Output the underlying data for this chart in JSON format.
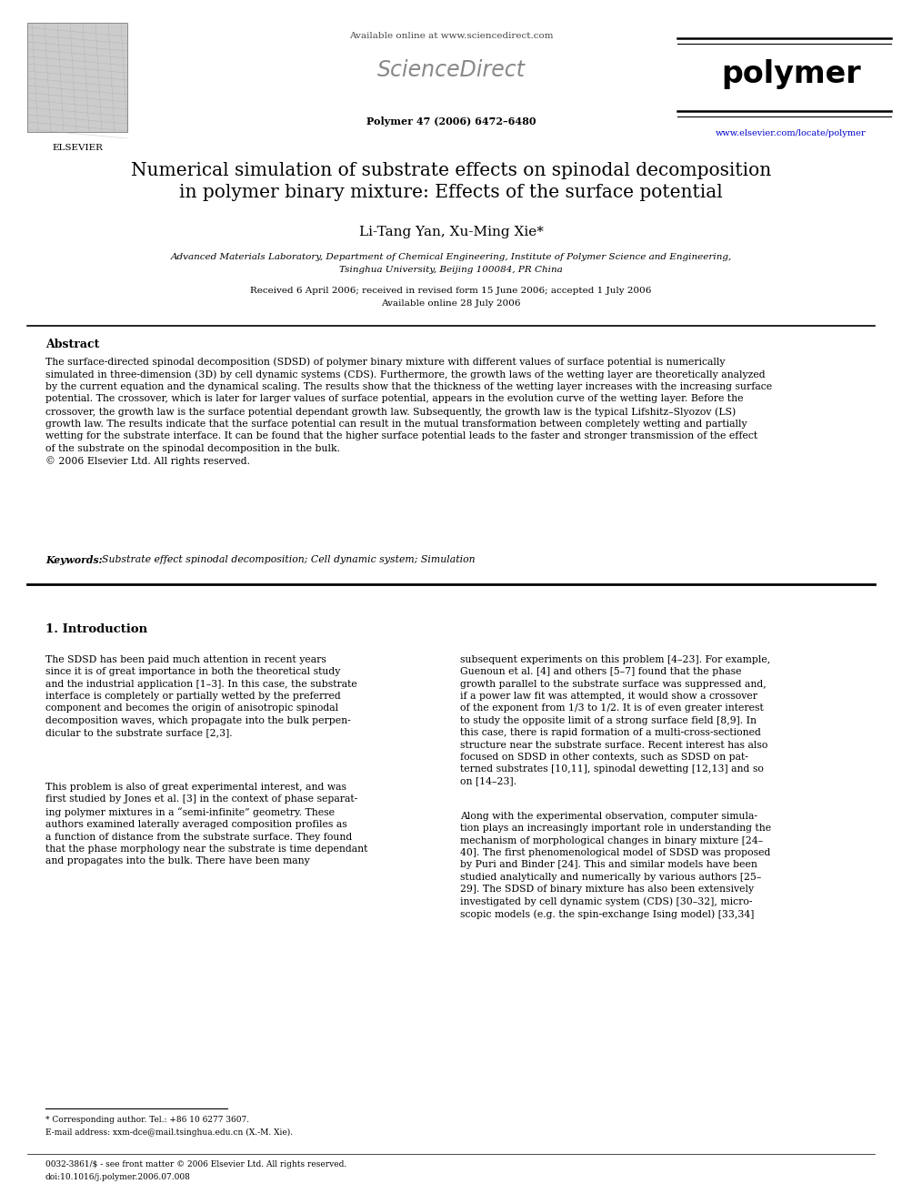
{
  "bg_color": "#ffffff",
  "page_width": 9.92,
  "page_height": 13.23,
  "header_available_online": "Available online at www.sciencedirect.com",
  "header_sciencedirect": "ScienceDirect",
  "header_journal": "polymer",
  "header_journal_info": "Polymer 47 (2006) 6472–6480",
  "header_url": "www.elsevier.com/locate/polymer",
  "title_line1": "Numerical simulation of substrate effects on spinodal decomposition",
  "title_line2": "in polymer binary mixture: Effects of the surface potential",
  "authors": "Li-Tang Yan, Xu-Ming Xie*",
  "affiliation1": "Advanced Materials Laboratory, Department of Chemical Engineering, Institute of Polymer Science and Engineering,",
  "affiliation2": "Tsinghua University, Beijing 100084, PR China",
  "dates": "Received 6 April 2006; received in revised form 15 June 2006; accepted 1 July 2006",
  "available": "Available online 28 July 2006",
  "abstract_title": "Abstract",
  "abstract_body": "The surface-directed spinodal decomposition (SDSD) of polymer binary mixture with different values of surface potential is numerically\nsimulated in three-dimension (3D) by cell dynamic systems (CDS). Furthermore, the growth laws of the wetting layer are theoretically analyzed\nby the current equation and the dynamical scaling. The results show that the thickness of the wetting layer increases with the increasing surface\npotential. The crossover, which is later for larger values of surface potential, appears in the evolution curve of the wetting layer. Before the\ncrossover, the growth law is the surface potential dependant growth law. Subsequently, the growth law is the typical Lifshitz–Slyozov (LS)\ngrowth law. The results indicate that the surface potential can result in the mutual transformation between completely wetting and partially\nwetting for the substrate interface. It can be found that the higher surface potential leads to the faster and stronger transmission of the effect\nof the substrate on the spinodal decomposition in the bulk.\n© 2006 Elsevier Ltd. All rights reserved.",
  "keywords_label": "Keywords: ",
  "keywords_text": "Substrate effect spinodal decomposition; Cell dynamic system; Simulation",
  "section1_title": "1. Introduction",
  "intro_col1_para1": "The SDSD has been paid much attention in recent years\nsince it is of great importance in both the theoretical study\nand the industrial application [1–3]. In this case, the substrate\ninterface is completely or partially wetted by the preferred\ncomponent and becomes the origin of anisotropic spinodal\ndecomposition waves, which propagate into the bulk perpen-\ndicular to the substrate surface [2,3].",
  "intro_col1_para2": "This problem is also of great experimental interest, and was\nfirst studied by Jones et al. [3] in the context of phase separat-\ning polymer mixtures in a “semi-infinite” geometry. These\nauthors examined laterally averaged composition profiles as\na function of distance from the substrate surface. They found\nthat the phase morphology near the substrate is time dependant\nand propagates into the bulk. There have been many",
  "intro_col2_para1": "subsequent experiments on this problem [4–23]. For example,\nGuenoun et al. [4] and others [5–7] found that the phase\ngrowth parallel to the substrate surface was suppressed and,\nif a power law fit was attempted, it would show a crossover\nof the exponent from 1/3 to 1/2. It is of even greater interest\nto study the opposite limit of a strong surface field [8,9]. In\nthis case, there is rapid formation of a multi-cross-sectioned\nstructure near the substrate surface. Recent interest has also\nfocused on SDSD in other contexts, such as SDSD on pat-\nterned substrates [10,11], spinodal dewetting [12,13] and so\non [14–23].",
  "intro_col2_para2": "Along with the experimental observation, computer simula-\ntion plays an increasingly important role in understanding the\nmechanism of morphological changes in binary mixture [24–\n40]. The first phenomenological model of SDSD was proposed\nby Puri and Binder [24]. This and similar models have been\nstudied analytically and numerically by various authors [25–\n29]. The SDSD of binary mixture has also been extensively\ninvestigated by cell dynamic system (CDS) [30–32], micro-\nscopic models (e.g. the spin-exchange Ising model) [33,34]",
  "footnote_star": "* Corresponding author. Tel.: +86 10 6277 3607.",
  "footnote_email": "E-mail address: xxm-dce@mail.tsinghua.edu.cn (X.-M. Xie).",
  "footnote_bottom1": "0032-3861/$ - see front matter © 2006 Elsevier Ltd. All rights reserved.",
  "footnote_bottom2": "doi:10.1016/j.polymer.2006.07.008"
}
